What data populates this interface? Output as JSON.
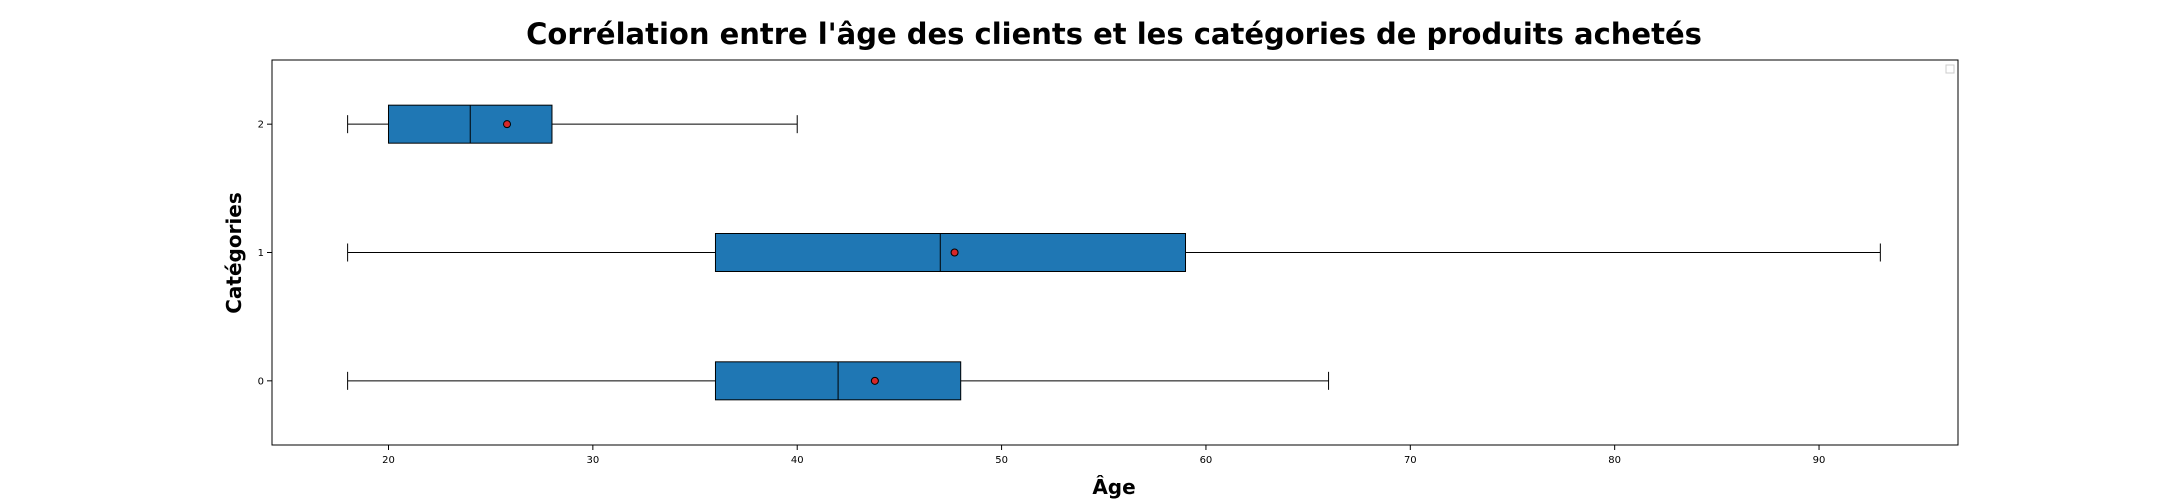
{
  "chart_data": {
    "type": "boxplot",
    "orientation": "horizontal",
    "title": "Corrélation entre l'âge des clients et les catégories de produits achetés",
    "xlabel": "Âge",
    "ylabel": "Catégories",
    "xlim": [
      14.3,
      96.8
    ],
    "ylim": [
      -0.5,
      2.5
    ],
    "x_ticks": [
      20,
      30,
      40,
      50,
      60,
      70,
      80,
      90
    ],
    "categories": [
      "0",
      "1",
      "2"
    ],
    "boxes": [
      {
        "category": "0",
        "whisker_low": 18,
        "q1": 36,
        "median": 42,
        "q3": 48,
        "whisker_high": 66,
        "mean": 43.8
      },
      {
        "category": "1",
        "whisker_low": 18,
        "q1": 36,
        "median": 47,
        "q3": 59,
        "whisker_high": 93,
        "mean": 47.7
      },
      {
        "category": "2",
        "whisker_low": 18,
        "q1": 20,
        "median": 24,
        "q3": 28,
        "whisker_high": 40,
        "mean": 25.8
      }
    ],
    "box_color": "#1f77b4",
    "mean_marker_color": "#d62728",
    "legend": "top-right (empty)",
    "grid": false
  }
}
